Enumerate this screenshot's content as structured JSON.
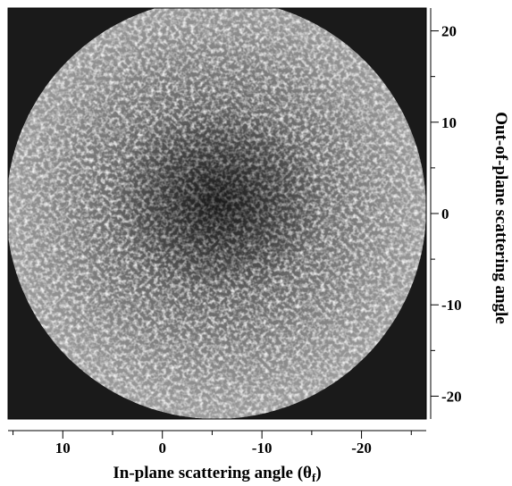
{
  "chart_data": {
    "type": "heatmap",
    "title": "",
    "xlabel": "In-plane scattering angle",
    "xlabel_symbol": "θ",
    "xlabel_subscript": "f",
    "ylabel": "Out-of-plane scattering angle",
    "x_ticks": [
      "10",
      "0",
      "-10",
      "-20"
    ],
    "x_tick_values": [
      10,
      0,
      -10,
      -20
    ],
    "y_ticks": [
      "20",
      "10",
      "0",
      "-10",
      "-20"
    ],
    "y_tick_values": [
      20,
      10,
      0,
      -10,
      -20
    ],
    "xlim": [
      15.5,
      -26.5
    ],
    "ylim": [
      -22.5,
      22.5
    ],
    "grid": false,
    "legend": "none",
    "intensity_pattern": "speckled circular detector image, bright ring near the edge, darker center",
    "colors": {
      "background": "#1a1a1a",
      "speckle_dark": "#2a2a2a",
      "speckle_bright": "#ffffff"
    }
  }
}
